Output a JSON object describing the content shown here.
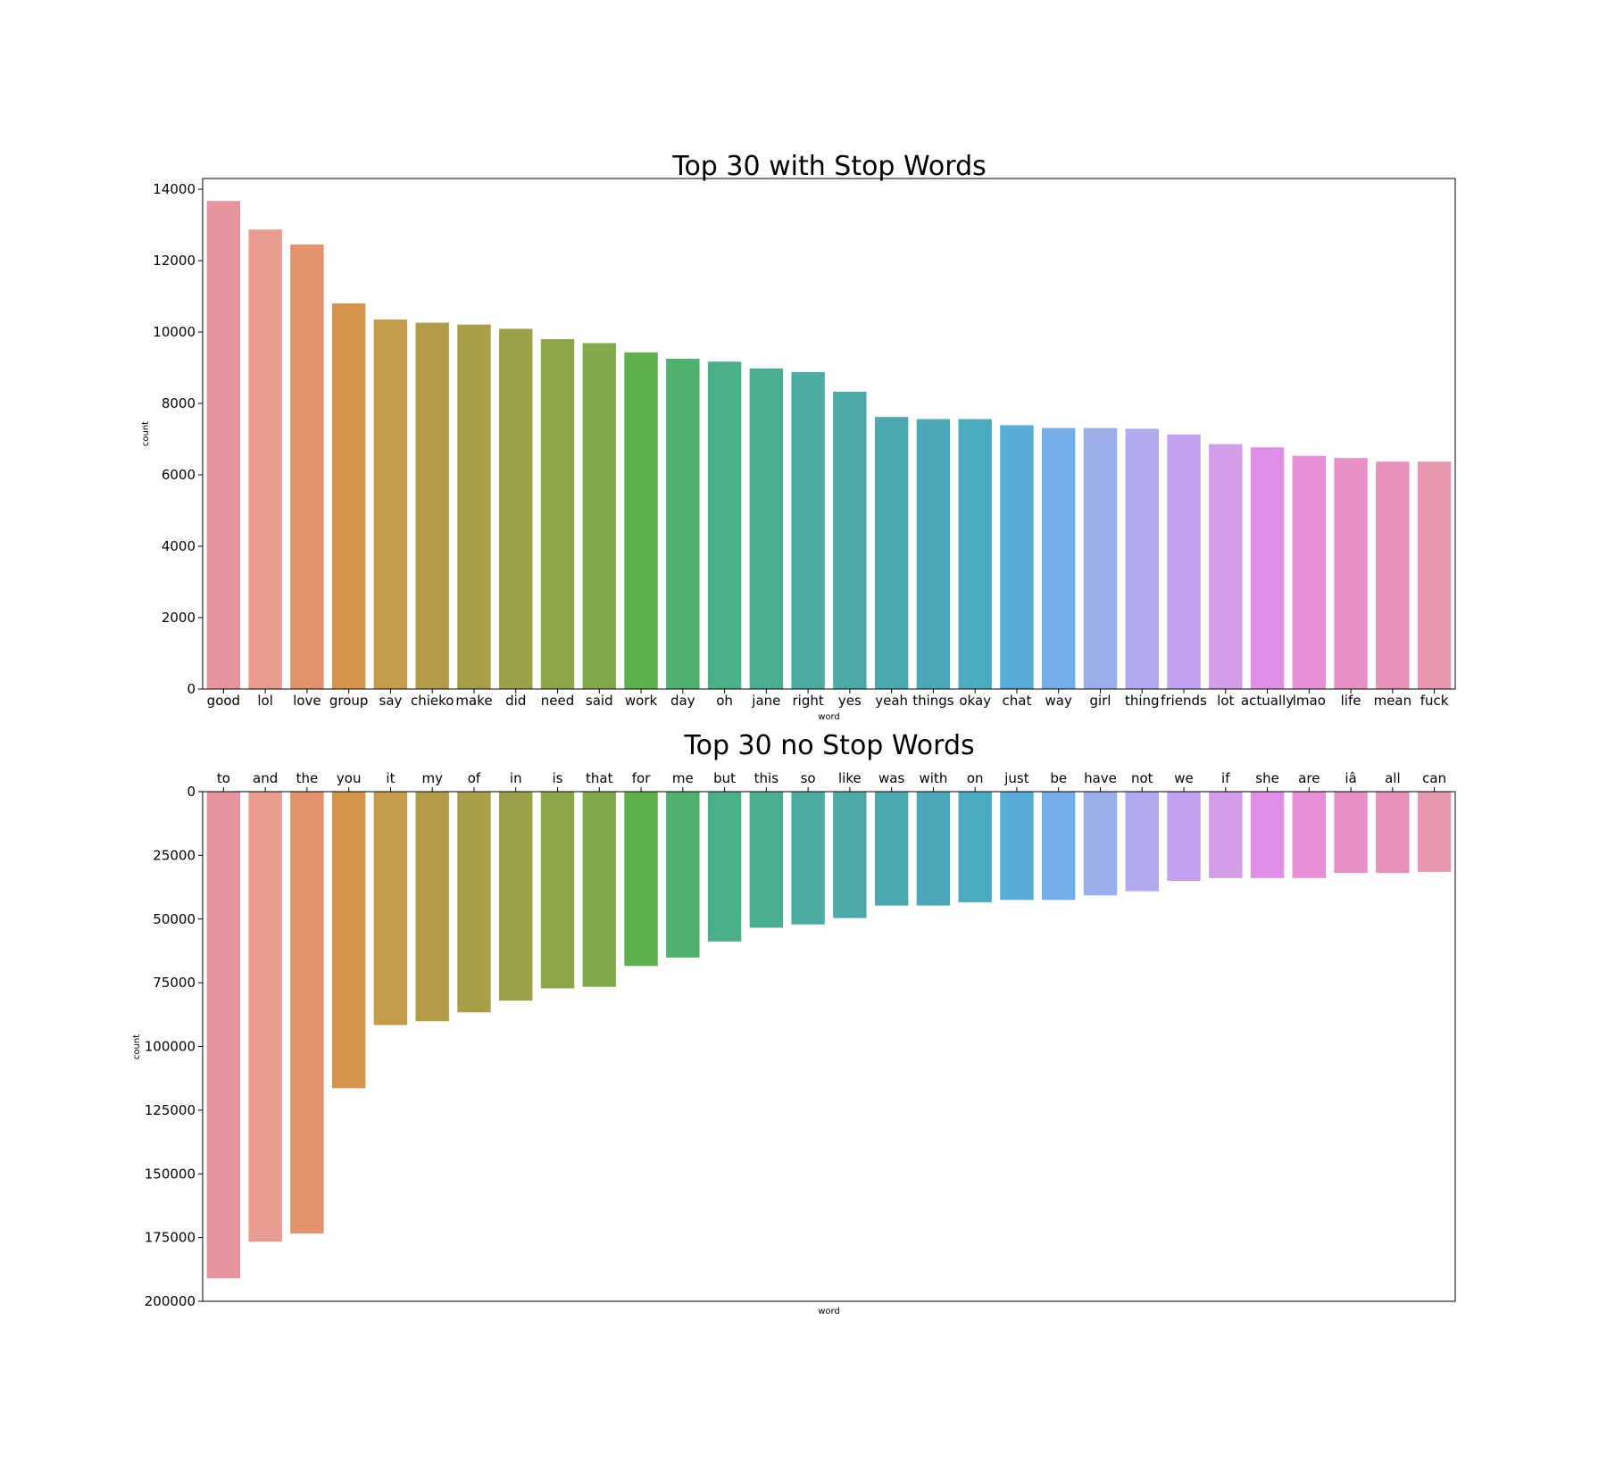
{
  "palette": [
    "#e8949e",
    "#e89b8e",
    "#e2926c",
    "#d5964c",
    "#c49c4a",
    "#b39c48",
    "#a89e4a",
    "#9aa148",
    "#8ea647",
    "#80aa4b",
    "#5db04b",
    "#4fb16d",
    "#4bb088",
    "#4bae93",
    "#4bad9f",
    "#4baaa7",
    "#4ba9af",
    "#4ba9b7",
    "#4babc1",
    "#56acd4",
    "#74adea",
    "#9aafe9",
    "#b0aaee",
    "#c2a2ec",
    "#d39de8",
    "#e08ee8",
    "#e78ed6",
    "#e88fc8",
    "#e791bb",
    "#e797ae"
  ],
  "chart_data": [
    {
      "type": "bar",
      "title": "Top 30 with Stop Words",
      "xlabel": "word",
      "ylabel": "count",
      "ylim": [
        0,
        14300
      ],
      "yticks": [
        0,
        2000,
        4000,
        6000,
        8000,
        10000,
        12000,
        14000
      ],
      "categories": [
        "good",
        "lol",
        "love",
        "group",
        "say",
        "chieko",
        "make",
        "did",
        "need",
        "said",
        "work",
        "day",
        "oh",
        "jane",
        "right",
        "yes",
        "yeah",
        "things",
        "okay",
        "chat",
        "way",
        "girl",
        "thing",
        "friends",
        "lot",
        "actually",
        "lmao",
        "life",
        "mean",
        "fuck"
      ],
      "values": [
        13670,
        12870,
        12450,
        10800,
        10350,
        10260,
        10210,
        10090,
        9800,
        9690,
        9430,
        9250,
        9170,
        8980,
        8880,
        8330,
        7620,
        7560,
        7560,
        7390,
        7310,
        7310,
        7290,
        7130,
        6860,
        6770,
        6530,
        6470,
        6370,
        6370
      ],
      "grid": false,
      "legend": "none"
    },
    {
      "type": "bar",
      "title": "Top 30 no Stop Words",
      "xlabel": "word",
      "ylabel": "count",
      "ylim": [
        0,
        200000
      ],
      "y_inverted": true,
      "x_ticks_on_top": true,
      "yticks": [
        0,
        25000,
        50000,
        75000,
        100000,
        125000,
        150000,
        175000,
        200000
      ],
      "categories": [
        "to",
        "and",
        "the",
        "you",
        "it",
        "my",
        "of",
        "in",
        "is",
        "that",
        "for",
        "me",
        "but",
        "this",
        "so",
        "like",
        "was",
        "with",
        "on",
        "just",
        "be",
        "have",
        "not",
        "we",
        "if",
        "she",
        "are",
        "iâ",
        "all",
        "can"
      ],
      "values": [
        191000,
        176600,
        173400,
        116400,
        91600,
        90100,
        86600,
        82000,
        77200,
        76600,
        68400,
        65100,
        58800,
        53400,
        52100,
        49600,
        44700,
        44700,
        43400,
        42500,
        42500,
        40700,
        39100,
        35000,
        33900,
        33900,
        33900,
        31900,
        31900,
        31500
      ],
      "grid": false,
      "legend": "none"
    }
  ]
}
